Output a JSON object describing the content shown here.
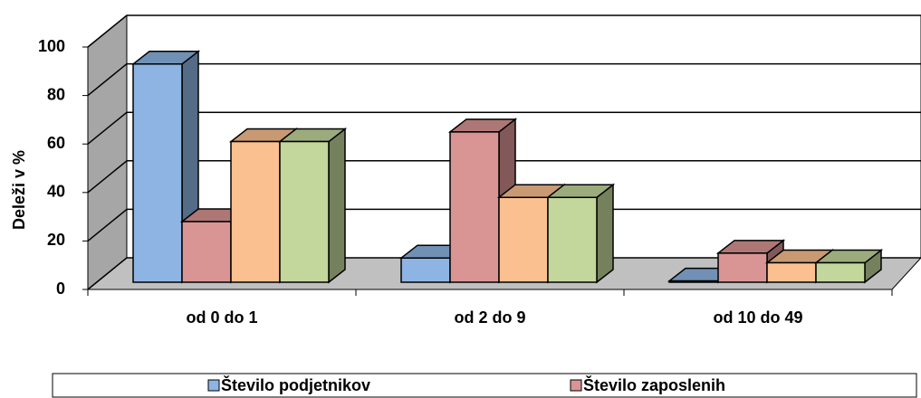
{
  "chart_data": {
    "type": "bar3d",
    "y_label": "Deleži v %",
    "categories": [
      "od 0 do 1",
      "od 2 do 9",
      "od 10 do 49"
    ],
    "series": [
      {
        "name": "Število podjetnikov",
        "color": "#8db4e2",
        "values": [
          90,
          10,
          0.5
        ]
      },
      {
        "name": "Število zaposlenih",
        "color": "#d99594",
        "values": [
          25,
          62,
          12
        ]
      },
      {
        "color": "#fac090",
        "values": [
          58,
          35,
          8
        ]
      },
      {
        "color": "#c3d69b",
        "values": [
          58,
          35,
          8
        ]
      }
    ],
    "ylim": [
      0,
      100
    ],
    "yticks": [
      0,
      20,
      40,
      60,
      80,
      100
    ],
    "grid": true
  }
}
